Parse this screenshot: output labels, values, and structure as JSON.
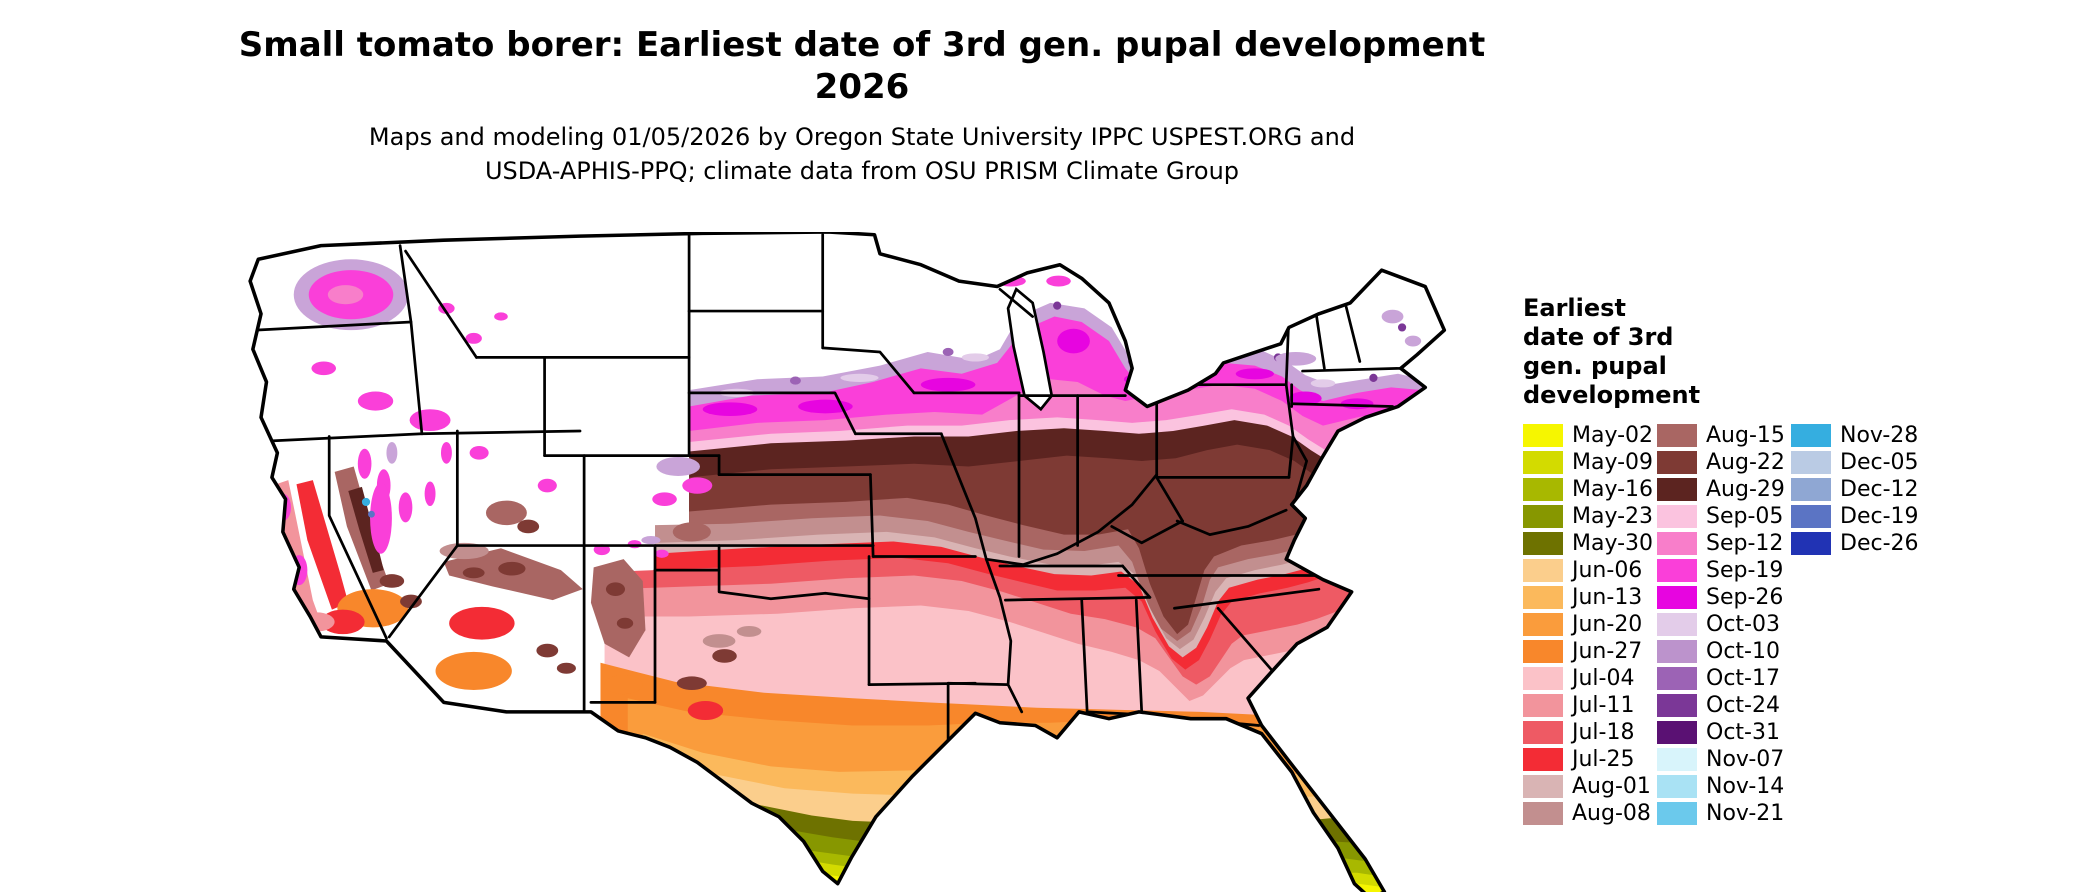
{
  "title": {
    "line1": "Small tomato borer: Earliest date of 3rd gen. pupal development",
    "line2": "2026"
  },
  "subtitle": {
    "line1": "Maps and modeling 01/05/2026 by Oregon State University IPPC USPEST.ORG and",
    "line2": "USDA-APHIS-PPQ; climate data from OSU PRISM Climate Group"
  },
  "legend": {
    "title_lines": [
      "Earliest",
      "date of 3rd",
      "gen. pupal",
      "development"
    ],
    "columns": [
      [
        {
          "label": "May-02",
          "color": "#F6F600"
        },
        {
          "label": "May-09",
          "color": "#D3DB00"
        },
        {
          "label": "May-16",
          "color": "#A8B800"
        },
        {
          "label": "May-23",
          "color": "#879700"
        },
        {
          "label": "May-30",
          "color": "#6E7200"
        },
        {
          "label": "Jun-06",
          "color": "#FBCE8C"
        },
        {
          "label": "Jun-13",
          "color": "#FBB95C"
        },
        {
          "label": "Jun-20",
          "color": "#FA9C3C"
        },
        {
          "label": "Jun-27",
          "color": "#F8872B"
        },
        {
          "label": "Jul-04",
          "color": "#FBC2C8"
        },
        {
          "label": "Jul-11",
          "color": "#F2949C"
        },
        {
          "label": "Jul-18",
          "color": "#EE5A64"
        },
        {
          "label": "Jul-25",
          "color": "#F32C35"
        },
        {
          "label": "Aug-01",
          "color": "#D9B4B4"
        },
        {
          "label": "Aug-08",
          "color": "#C28F8F"
        }
      ],
      [
        {
          "label": "Aug-15",
          "color": "#A96663"
        },
        {
          "label": "Aug-22",
          "color": "#7E3A34"
        },
        {
          "label": "Aug-29",
          "color": "#5C2420"
        },
        {
          "label": "Sep-05",
          "color": "#FBC3DF"
        },
        {
          "label": "Sep-12",
          "color": "#F87ECA"
        },
        {
          "label": "Sep-19",
          "color": "#FA3FD9"
        },
        {
          "label": "Sep-26",
          "color": "#E705E0"
        },
        {
          "label": "Oct-03",
          "color": "#E3CCE9"
        },
        {
          "label": "Oct-10",
          "color": "#BC93CC"
        },
        {
          "label": "Oct-17",
          "color": "#9C63B5"
        },
        {
          "label": "Oct-24",
          "color": "#7B3797"
        },
        {
          "label": "Oct-31",
          "color": "#5A1173"
        },
        {
          "label": "Nov-07",
          "color": "#D8F4FB"
        },
        {
          "label": "Nov-14",
          "color": "#A9E2F4"
        },
        {
          "label": "Nov-21",
          "color": "#6BC9EC"
        }
      ],
      [
        {
          "label": "Nov-28",
          "color": "#35AEE0"
        },
        {
          "label": "Dec-05",
          "color": "#BACBE4"
        },
        {
          "label": "Dec-12",
          "color": "#8FA7D3"
        },
        {
          "label": "Dec-19",
          "color": "#5B74C4"
        },
        {
          "label": "Dec-26",
          "color": "#2133B4"
        }
      ]
    ]
  }
}
